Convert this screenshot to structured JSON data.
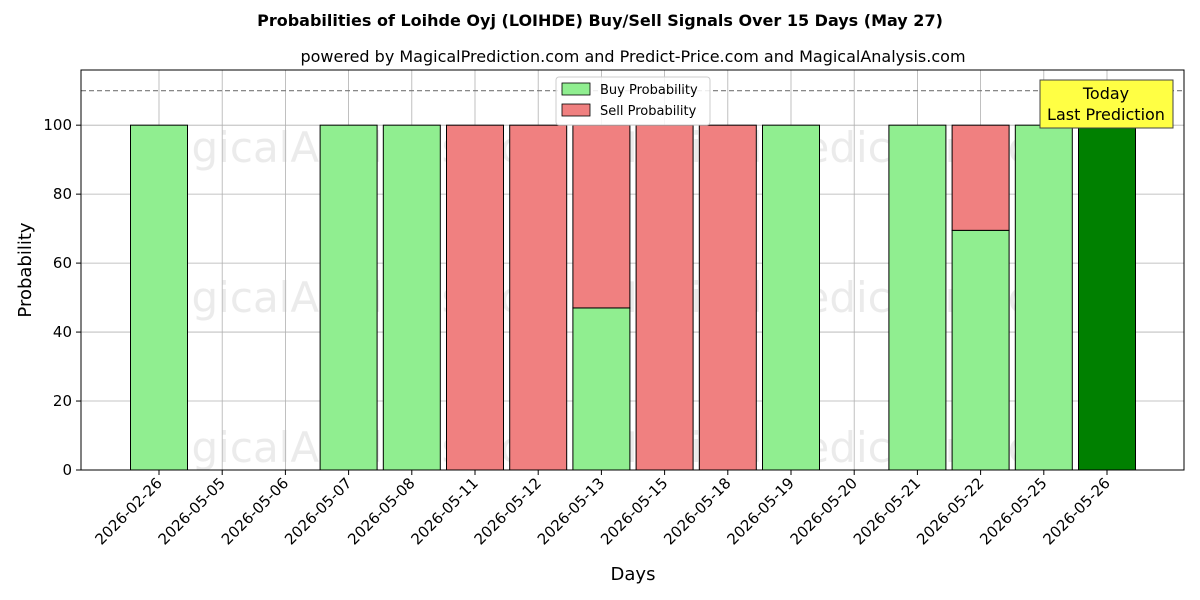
{
  "chart_data": {
    "type": "bar",
    "title": "Probabilities of Loihde Oyj (LOIHDE) Buy/Sell Signals Over 15 Days (May 27)",
    "subtitle": "powered by MagicalPrediction.com and Predict-Price.com and MagicalAnalysis.com",
    "xlabel": "Days",
    "ylabel": "Probability",
    "ylim": [
      0,
      116
    ],
    "yticks": [
      0,
      20,
      40,
      60,
      80,
      100
    ],
    "reference_line": 110,
    "grid": true,
    "stacked": true,
    "legend_position": "top-center",
    "categories": [
      "2026-02-26",
      "2026-05-05",
      "2026-05-06",
      "2026-05-07",
      "2026-05-08",
      "2026-05-11",
      "2026-05-12",
      "2026-05-13",
      "2026-05-15",
      "2026-05-18",
      "2026-05-19",
      "2026-05-20",
      "2026-05-21",
      "2026-05-22",
      "2026-05-25",
      "2026-05-26"
    ],
    "series": [
      {
        "name": "Buy Probability",
        "color": "#90ee90",
        "values": [
          100,
          0,
          0,
          100,
          100,
          0,
          0,
          47,
          0,
          0,
          100,
          0,
          100,
          69.5,
          100,
          100
        ]
      },
      {
        "name": "Sell Probability",
        "color": "#f08080",
        "values": [
          0,
          0,
          0,
          0,
          0,
          100,
          100,
          53,
          100,
          100,
          0,
          0,
          0,
          30.5,
          0,
          0
        ]
      }
    ],
    "highlight": {
      "category": "2026-05-26",
      "color": "#008000"
    },
    "annotation": {
      "lines": [
        "Today",
        "Last Prediction"
      ],
      "background": "#ffff44"
    },
    "watermarks": [
      "MagicalAnalysis.com",
      "MagicalPrediction.com"
    ]
  }
}
